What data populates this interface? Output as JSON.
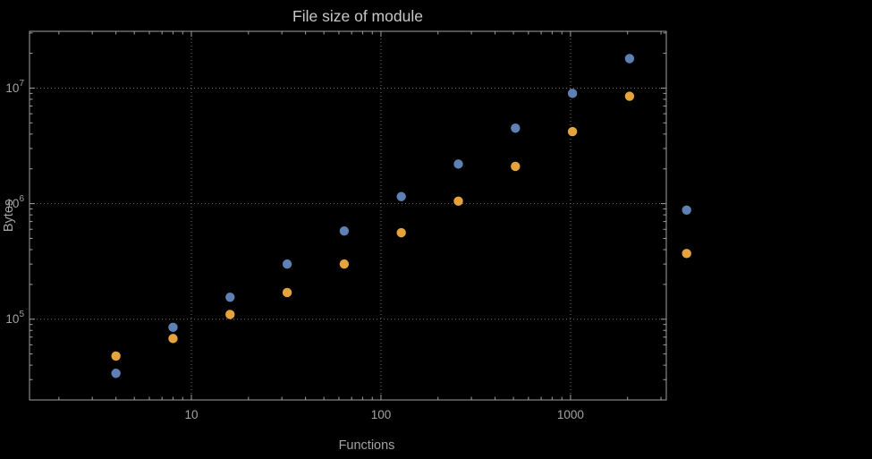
{
  "page": {
    "background_color": "#000000"
  },
  "chart_data": {
    "type": "scatter",
    "title": "File size of module",
    "xlabel": "Functions",
    "ylabel": "Bytes",
    "x_scale": "log",
    "y_scale": "log",
    "xlim": [
      1.4,
      3200
    ],
    "ylim": [
      20000,
      31000000
    ],
    "x_ticks": [
      10,
      100,
      1000
    ],
    "x_tick_labels": [
      "10",
      "100",
      "1000"
    ],
    "y_ticks": [
      100000,
      1000000,
      10000000
    ],
    "y_tick_labels": [
      {
        "base": "10",
        "exp": "5"
      },
      {
        "base": "10",
        "exp": "6"
      },
      {
        "base": "10",
        "exp": "7"
      }
    ],
    "grid": "dotted-at-major-ticks",
    "legend": "none",
    "frame": "full-box-with-mirrored-ticks",
    "x": [
      4,
      8,
      16,
      32,
      64,
      128,
      256,
      512,
      1024,
      2048,
      4096
    ],
    "series": [
      {
        "name": "series-1-blue",
        "color": "#5e81b5",
        "values": [
          34000,
          85000,
          155000,
          300000,
          580000,
          1150000,
          2200000,
          4500000,
          9000000,
          18000000,
          880000
        ]
      },
      {
        "name": "series-2-orange",
        "color": "#e5a33b",
        "values": [
          48000,
          68000,
          110000,
          170000,
          300000,
          560000,
          1050000,
          2100000,
          4200000,
          8500000,
          370000
        ]
      }
    ],
    "colors": {
      "frame": "#a0a0a0",
      "grid": "#6e6e6e",
      "tick_label": "#a3a3a3",
      "axis_label": "#a3a3a3",
      "title": "#c8c8c8"
    }
  }
}
